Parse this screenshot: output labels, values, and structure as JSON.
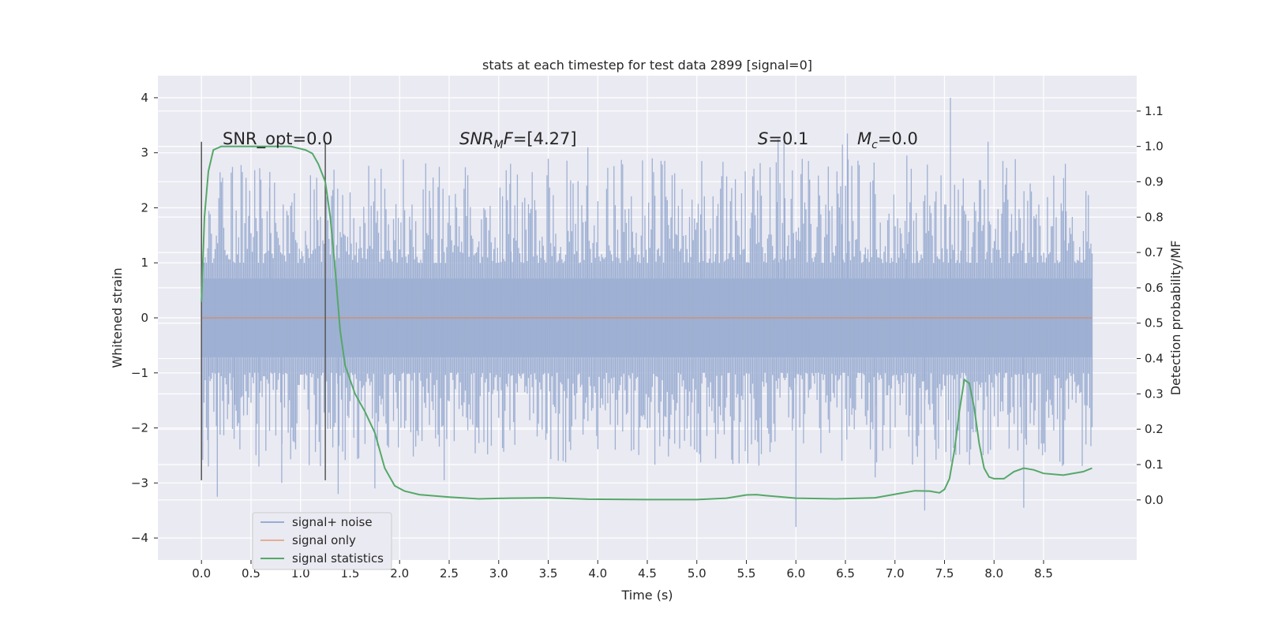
{
  "chart_data": {
    "type": "line",
    "title": "stats at each timestep for test data 2899 [signal=0]",
    "xlabel": "Time (s)",
    "ylabel_left": "Whitened strain",
    "ylabel_right": "Detection probability/MF",
    "xlim": [
      -0.44,
      9.44
    ],
    "ylim_left": [
      -4.4,
      4.4
    ],
    "ylim_right": [
      -0.17,
      1.2
    ],
    "x_ticks": [
      0.0,
      0.5,
      1.0,
      1.5,
      2.0,
      2.5,
      3.0,
      3.5,
      4.0,
      4.5,
      5.0,
      5.5,
      6.0,
      6.5,
      7.0,
      7.5,
      8.0,
      8.5
    ],
    "x_tick_labels": [
      "0.0",
      "0.5",
      "1.0",
      "1.5",
      "2.0",
      "2.5",
      "3.0",
      "3.5",
      "4.0",
      "4.5",
      "5.0",
      "5.5",
      "6.0",
      "6.5",
      "7.0",
      "7.5",
      "8.0",
      "8.5"
    ],
    "y_left_ticks": [
      4,
      3,
      2,
      1,
      0,
      -1,
      -2,
      -3,
      -4
    ],
    "y_left_tick_labels": [
      "4",
      "3",
      "2",
      "1",
      "0",
      "−1",
      "−2",
      "−3",
      "−4"
    ],
    "y_right_ticks": [
      1.1,
      1.0,
      0.9,
      0.8,
      0.7,
      0.6,
      0.5,
      0.4,
      0.3,
      0.2,
      0.1,
      0.0
    ],
    "y_right_tick_labels": [
      "1.1",
      "1.0",
      "0.9",
      "0.8",
      "0.7",
      "0.6",
      "0.5",
      "0.4",
      "0.3",
      "0.2",
      "0.1",
      "0.0"
    ],
    "grid": true,
    "legend_position": "lower-left",
    "annotations": {
      "snr_opt": "SNR_opt=0.0",
      "snr_mf_pre": "SNR",
      "snr_mf_sub": "M",
      "snr_mf_mid": "F",
      "snr_mf_post": "=[4.27]",
      "s_label": "S",
      "s_value": "=0.1",
      "mc_label": "M",
      "mc_sub": "c",
      "mc_value": "=0.0"
    },
    "vertical_markers": [
      0.0,
      1.25
    ],
    "vertical_marker_range": [
      -2.95,
      3.2
    ],
    "series": [
      {
        "name": "signal+ noise",
        "axis": "left",
        "color": "#9aadd2",
        "x_range": [
          0.0,
          8.99
        ],
        "sample_count": 720,
        "noise_core_amplitude": 0.55,
        "spikes": [
          {
            "x": 0.07,
            "y": -2.7
          },
          {
            "x": 0.16,
            "y": -3.25
          },
          {
            "x": 0.33,
            "y": -2.2
          },
          {
            "x": 0.58,
            "y": -2.7
          },
          {
            "x": 0.81,
            "y": -3.0
          },
          {
            "x": 0.69,
            "y": 2.65
          },
          {
            "x": 1.38,
            "y": -3.2
          },
          {
            "x": 1.75,
            "y": -3.1
          },
          {
            "x": 2.45,
            "y": -2.95
          },
          {
            "x": 3.12,
            "y": 2.8
          },
          {
            "x": 3.9,
            "y": 3.1
          },
          {
            "x": 4.55,
            "y": 2.9
          },
          {
            "x": 5.05,
            "y": 2.85
          },
          {
            "x": 5.82,
            "y": 3.25
          },
          {
            "x": 5.88,
            "y": 3.2
          },
          {
            "x": 6.0,
            "y": -3.8
          },
          {
            "x": 6.47,
            "y": 3.15
          },
          {
            "x": 6.52,
            "y": 3.35
          },
          {
            "x": 6.8,
            "y": -2.9
          },
          {
            "x": 7.12,
            "y": 2.95
          },
          {
            "x": 7.3,
            "y": -3.5
          },
          {
            "x": 7.56,
            "y": 4.0
          },
          {
            "x": 7.94,
            "y": 3.2
          },
          {
            "x": 8.3,
            "y": -3.45
          },
          {
            "x": 8.72,
            "y": 2.8
          }
        ]
      },
      {
        "name": "signal only",
        "axis": "left",
        "color": "#dd8452",
        "x": [
          0.0,
          8.99
        ],
        "y": [
          0.0,
          0.0
        ]
      },
      {
        "name": "signal statistics",
        "axis": "right",
        "color": "#55a868",
        "x": [
          0.0,
          0.03,
          0.07,
          0.12,
          0.2,
          0.35,
          0.5,
          0.7,
          0.9,
          1.05,
          1.12,
          1.18,
          1.25,
          1.3,
          1.35,
          1.4,
          1.45,
          1.55,
          1.65,
          1.75,
          1.85,
          1.95,
          2.05,
          2.2,
          2.5,
          2.8,
          3.1,
          3.5,
          3.9,
          4.5,
          5.0,
          5.3,
          5.5,
          5.6,
          5.7,
          6.0,
          6.4,
          6.8,
          7.0,
          7.2,
          7.35,
          7.45,
          7.5,
          7.55,
          7.6,
          7.65,
          7.7,
          7.75,
          7.8,
          7.85,
          7.9,
          7.95,
          8.0,
          8.1,
          8.2,
          8.3,
          8.4,
          8.5,
          8.7,
          8.9,
          8.99
        ],
        "y": [
          0.56,
          0.8,
          0.93,
          0.99,
          1.0,
          1.0,
          1.0,
          1.0,
          1.0,
          0.99,
          0.98,
          0.95,
          0.9,
          0.8,
          0.65,
          0.48,
          0.38,
          0.3,
          0.25,
          0.19,
          0.09,
          0.04,
          0.025,
          0.015,
          0.008,
          0.003,
          0.005,
          0.006,
          0.002,
          0.001,
          0.001,
          0.005,
          0.014,
          0.015,
          0.012,
          0.005,
          0.003,
          0.006,
          0.016,
          0.026,
          0.025,
          0.02,
          0.03,
          0.06,
          0.14,
          0.25,
          0.34,
          0.33,
          0.26,
          0.16,
          0.09,
          0.065,
          0.06,
          0.06,
          0.08,
          0.09,
          0.085,
          0.075,
          0.07,
          0.08,
          0.09
        ]
      }
    ]
  }
}
